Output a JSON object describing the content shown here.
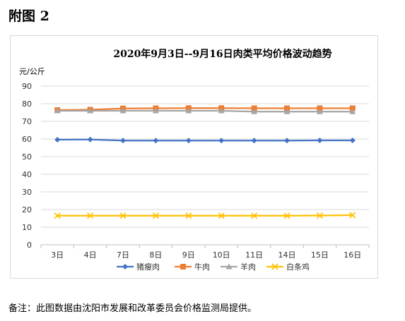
{
  "figure_label": "附图 2",
  "note": "备注：此图数据由沈阳市发展和改革委员会价格监测局提供。",
  "chart_data": {
    "type": "line",
    "title": "2020年9月3日--9月16日肉类平均价格波动趋势",
    "ylabel": "元/公斤",
    "xlabel": "",
    "categories": [
      "3日",
      "4日",
      "7日",
      "8日",
      "9日",
      "10日",
      "11日",
      "14日",
      "15日",
      "16日"
    ],
    "ylim": [
      0,
      90
    ],
    "yticks": [
      0,
      10,
      20,
      30,
      40,
      50,
      60,
      70,
      80,
      90
    ],
    "grid": true,
    "legend_position": "bottom",
    "series": [
      {
        "name": "猪瘦肉",
        "color": "#4472c4",
        "marker": "diamond",
        "values": [
          59.6,
          59.7,
          59.1,
          59.1,
          59.1,
          59.1,
          59.1,
          59.1,
          59.2,
          59.2
        ]
      },
      {
        "name": "牛肉",
        "color": "#ed7d31",
        "marker": "square",
        "values": [
          76.4,
          76.6,
          77.3,
          77.4,
          77.5,
          77.5,
          77.4,
          77.4,
          77.4,
          77.4
        ]
      },
      {
        "name": "羊肉",
        "color": "#a5a5a5",
        "marker": "triangle",
        "values": [
          76.0,
          76.0,
          76.0,
          76.0,
          76.0,
          76.0,
          75.5,
          75.5,
          75.5,
          75.5
        ]
      },
      {
        "name": "白条鸡",
        "color": "#ffc000",
        "marker": "x",
        "values": [
          16.5,
          16.5,
          16.5,
          16.5,
          16.5,
          16.5,
          16.5,
          16.5,
          16.6,
          16.8
        ]
      }
    ]
  }
}
